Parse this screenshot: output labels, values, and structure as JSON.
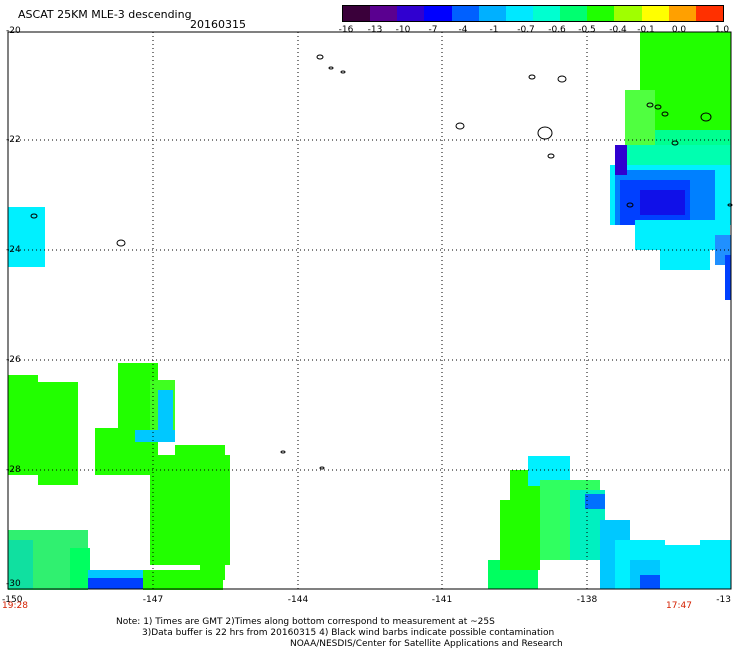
{
  "header": {
    "title": "ASCAT 25KM MLE-3 descending",
    "date": "20160315"
  },
  "colorbar": {
    "colors": [
      "#3a003a",
      "#5a0090",
      "#3000d0",
      "#0000ff",
      "#0060ff",
      "#00b0ff",
      "#00e8ff",
      "#00ffd0",
      "#00ff70",
      "#20ff00",
      "#a0ff00",
      "#ffff00",
      "#ffa000",
      "#ff3000"
    ],
    "labels": [
      "-16",
      "-13",
      "-10",
      "-7",
      "-4",
      "-1",
      "-0.7",
      "-0.6",
      "-0.5",
      "-0.4",
      "-0.1",
      "0.0",
      "1.0"
    ]
  },
  "map": {
    "lat_labels": [
      "-20",
      "-22",
      "-24",
      "-26",
      "-28",
      "-30"
    ],
    "lon_labels": [
      "-150",
      "-147",
      "-144",
      "-141",
      "-138",
      "-13"
    ],
    "start_time": "19:28",
    "end_time": "17:47"
  },
  "notes": {
    "line1": "Note: 1) Times are GMT 2)Times along bottom correspond to measurement at ~25S",
    "line2": "3)Data buffer is 22 hrs from 20160315 4) Black wind barbs indicate possible contamination",
    "line3": "NOAA/NESDIS/Center for Satellite Applications and Research"
  }
}
